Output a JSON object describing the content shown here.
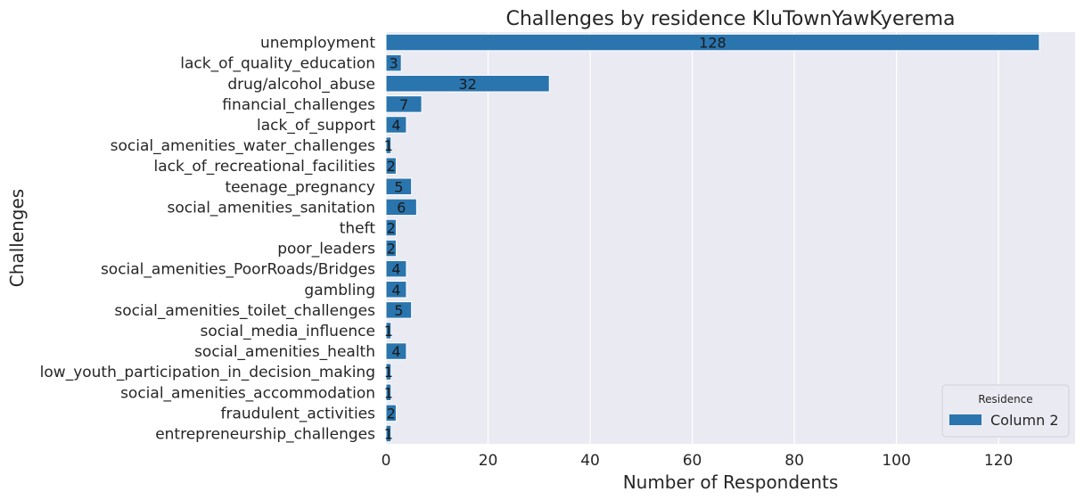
{
  "chart_data": {
    "type": "bar",
    "orientation": "horizontal",
    "title": "Challenges by residence KluTownYawKyerema",
    "xlabel": "Number of Respondents",
    "ylabel": "Challenges",
    "xlim": [
      0,
      135
    ],
    "xticks": [
      0,
      20,
      40,
      60,
      80,
      100,
      120
    ],
    "grid": true,
    "legend": {
      "title": "Residence",
      "placement": "bottom-right"
    },
    "categories": [
      "unemployment",
      "lack_of_quality_education",
      "drug/alcohol_abuse",
      "financial_challenges",
      "lack_of_support",
      "social_amenities_water_challenges",
      "lack_of_recreational_facilities",
      "teenage_pregnancy",
      "social_amenities_sanitation",
      "theft",
      "poor_leaders",
      "social_amenities_PoorRoads/Bridges",
      "gambling",
      "social_amenities_toilet_challenges",
      "social_media_influence",
      "social_amenities_health",
      "low_youth_participation_in_decision_making",
      "social_amenities_accommodation",
      "fraudulent_activities",
      "entrepreneurship_challenges"
    ],
    "series": [
      {
        "name": "Column 2",
        "color": "#2a75ae",
        "values": [
          128,
          3,
          32,
          7,
          4,
          1,
          2,
          5,
          6,
          2,
          2,
          4,
          4,
          5,
          1,
          4,
          1,
          1,
          2,
          1
        ]
      }
    ]
  },
  "colors": {
    "plot_background": "#eaeaf2",
    "grid": "#ffffff",
    "bar": "#2a75ae",
    "text": "#262626"
  }
}
